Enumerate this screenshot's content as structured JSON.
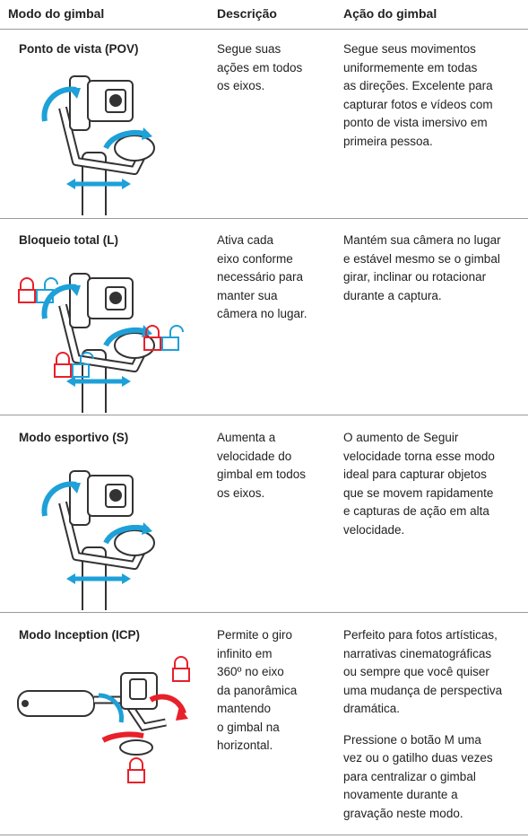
{
  "header": {
    "col1": "Modo do gimbal",
    "col2": "Descrição",
    "col3": "Ação do gimbal"
  },
  "rows": [
    {
      "mode": "Ponto de vista (POV)",
      "description": [
        "Segue suas",
        "ações em todos",
        "os eixos."
      ],
      "action": [
        [
          "Segue seus movimentos",
          "uniformemente em todas",
          "as direções. Excelente para",
          "capturar fotos e vídeos com",
          "ponto de vista imersivo em",
          "primeira pessoa."
        ]
      ]
    },
    {
      "mode": "Bloqueio total (L)",
      "description": [
        "Ativa cada",
        "eixo conforme",
        "necessário para",
        "manter sua",
        "câmera no lugar."
      ],
      "action": [
        [
          "Mantém sua câmera no lugar",
          "e estável mesmo se o gimbal",
          "girar, inclinar ou rotacionar",
          "durante a captura."
        ]
      ]
    },
    {
      "mode": "Modo esportivo (S)",
      "description": [
        "Aumenta a",
        "velocidade do",
        "gimbal em todos",
        "os eixos."
      ],
      "action": [
        [
          "O aumento de Seguir",
          "velocidade torna esse modo",
          "ideal para capturar objetos",
          "que se movem rapidamente",
          "e capturas de ação em alta",
          "velocidade."
        ]
      ]
    },
    {
      "mode": "Modo Inception (ICP)",
      "description": [
        "Permite o giro",
        "infinito em",
        "360º no eixo",
        "da panorâmica",
        "mantendo",
        "o gimbal na",
        "horizontal."
      ],
      "action": [
        [
          "Perfeito para fotos artísticas,",
          "narrativas cinematográficas",
          "ou sempre que você quiser",
          "uma mudança de perspectiva",
          "dramática."
        ],
        [
          "Pressione o botão M uma",
          "vez ou o gatilho duas vezes",
          "para centralizar o gimbal",
          "novamente durante a",
          "gravação neste modo."
        ]
      ]
    }
  ]
}
